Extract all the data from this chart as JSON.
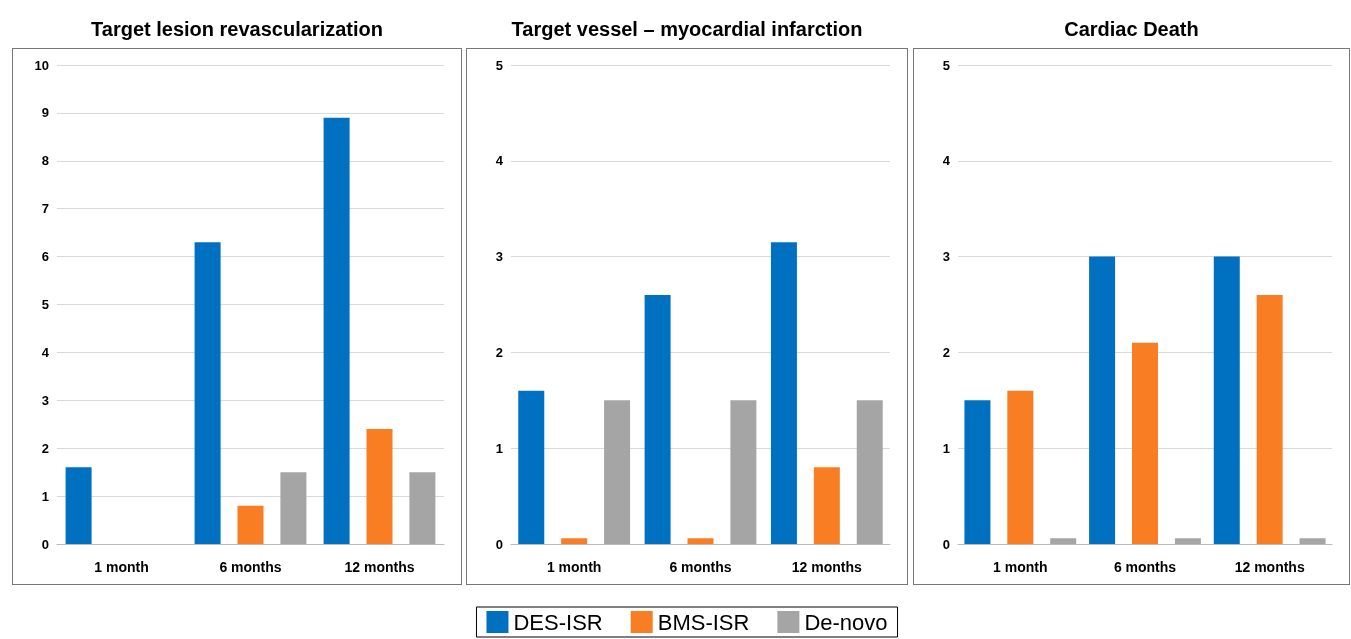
{
  "chart_data": [
    {
      "type": "bar",
      "title": "Target lesion revascularization",
      "categories": [
        "1 month",
        "6 months",
        "12 months"
      ],
      "ylim": [
        0,
        10
      ],
      "yticks": [
        0,
        1,
        2,
        3,
        4,
        5,
        6,
        7,
        8,
        9,
        10
      ],
      "grid": "y",
      "series": [
        {
          "color": "#0070c0",
          "values": [
            1.6,
            6.3,
            8.9
          ]
        },
        {
          "color": "#f97d22",
          "values": [
            0,
            0.8,
            2.4
          ]
        },
        {
          "color": "#a5a5a5",
          "values": [
            0,
            1.5,
            1.5
          ]
        }
      ]
    },
    {
      "type": "bar",
      "title": "Target vessel – myocardial infarction",
      "categories": [
        "1 month",
        "6 months",
        "12 months"
      ],
      "ylim": [
        0,
        5
      ],
      "yticks": [
        0,
        1,
        2,
        3,
        4,
        5
      ],
      "grid": "y",
      "legend": "bottom",
      "series": [
        {
          "name": "DES-ISR",
          "color": "#0070c0",
          "values": [
            1.6,
            2.6,
            3.15
          ]
        },
        {
          "name": "BMS-ISR",
          "color": "#f97d22",
          "values": [
            0.06,
            0.06,
            0.8
          ]
        },
        {
          "name": "De-novo",
          "color": "#a5a5a5",
          "values": [
            1.5,
            1.5,
            1.5
          ]
        }
      ]
    },
    {
      "type": "bar",
      "title": "Cardiac Death",
      "categories": [
        "1 month",
        "6 months",
        "12 months"
      ],
      "ylim": [
        0,
        5
      ],
      "yticks": [
        0,
        1,
        2,
        3,
        4,
        5
      ],
      "grid": "y",
      "series": [
        {
          "color": "#0070c0",
          "values": [
            1.5,
            3.0,
            3.0
          ]
        },
        {
          "color": "#f97d22",
          "values": [
            1.6,
            2.1,
            2.6
          ]
        },
        {
          "color": "#a5a5a5",
          "values": [
            0.06,
            0.06,
            0.06
          ]
        }
      ]
    }
  ]
}
